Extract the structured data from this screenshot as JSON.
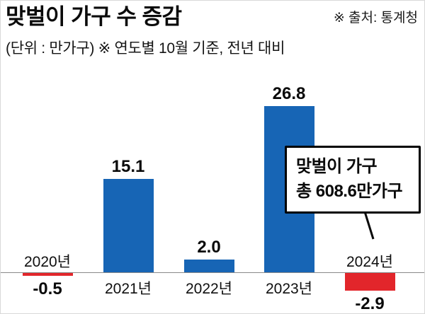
{
  "header": {
    "title": "맞벌이 가구 수 증감",
    "source": "※ 출처: 통계청",
    "subtitle": "(단위 : 만가구) ※ 연도별 10월 기준, 전년 대비"
  },
  "annotation": {
    "line1": "맞벌이 가구",
    "line2": "총 608.6만가구"
  },
  "chart_data": {
    "type": "bar",
    "title": "맞벌이 가구 수 증감",
    "unit": "만가구",
    "note": "연도별 10월 기준, 전년 대비",
    "source": "통계청",
    "categories": [
      "2020년",
      "2021년",
      "2022년",
      "2023년",
      "2024년"
    ],
    "values": [
      -0.5,
      15.1,
      2.0,
      26.8,
      -2.9
    ],
    "value_labels": [
      "-0.5",
      "15.1",
      "2.0",
      "26.8",
      "-2.9"
    ],
    "ylim": [
      -5,
      30
    ],
    "grid": false,
    "legend": "none",
    "colors": {
      "positive": "#1765b5",
      "negative": "#e2262b"
    },
    "annotation_text": "맞벌이 가구 총 608.6만가구 (2024년 지점 표시)"
  }
}
